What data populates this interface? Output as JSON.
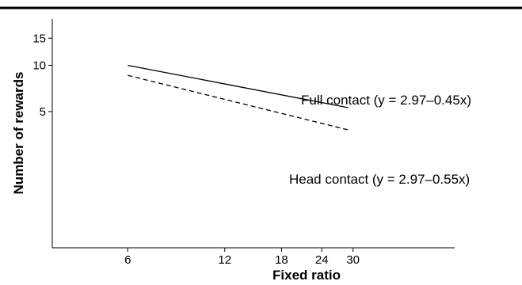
{
  "chart_data": {
    "type": "line",
    "xlabel": "Fixed ratio",
    "ylabel": "Number of rewards",
    "x_scale": "log",
    "y_scale": "log",
    "x_ticks": [
      6,
      12,
      18,
      24,
      30
    ],
    "y_ticks": [
      5,
      10,
      15
    ],
    "xlim": [
      3.5,
      62
    ],
    "ylim": [
      0.65,
      20
    ],
    "grid": false,
    "series": [
      {
        "name": "Full contact (y = 2.97–0.45x)",
        "line_style": "solid",
        "x": [
          6,
          29
        ],
        "y": [
          10,
          5.3
        ]
      },
      {
        "name": "Head contact (y = 2.97–0.55x)",
        "line_style": "dashed",
        "x": [
          6,
          29
        ],
        "y": [
          8.6,
          3.8
        ]
      }
    ]
  }
}
